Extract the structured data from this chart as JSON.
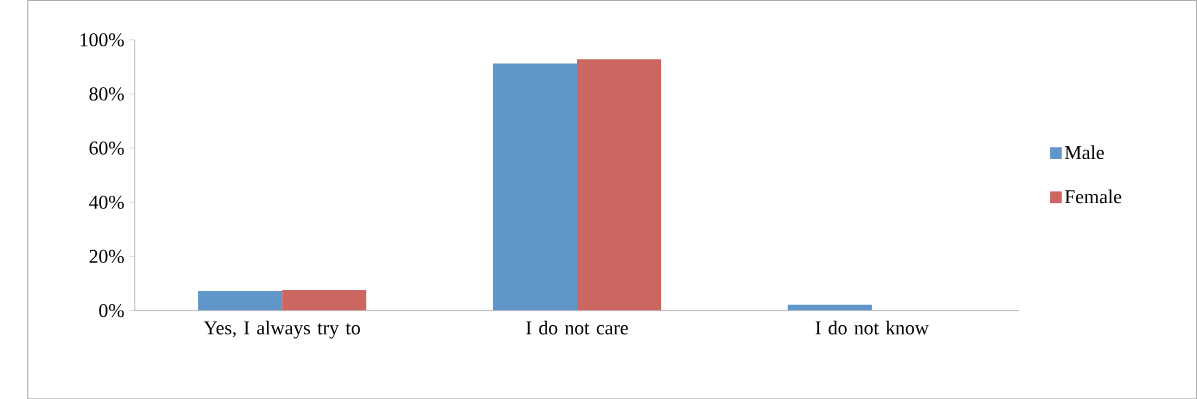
{
  "chart_data": {
    "type": "bar",
    "categories": [
      "Yes, I always try to",
      "I do not care",
      "I do not know"
    ],
    "series": [
      {
        "name": "Male",
        "color": "#6096c9",
        "values": [
          7.2,
          91.3,
          2.2
        ]
      },
      {
        "name": "Female",
        "color": "#cb6660",
        "values": [
          7.6,
          92.8,
          0
        ]
      }
    ],
    "ylim": [
      0,
      100
    ],
    "yticks": [
      {
        "value": 0,
        "label": "0%"
      },
      {
        "value": 20,
        "label": "20%"
      },
      {
        "value": 40,
        "label": "40%"
      },
      {
        "value": 60,
        "label": "60%"
      },
      {
        "value": 80,
        "label": "80%"
      },
      {
        "value": 100,
        "label": "100%"
      }
    ],
    "grid": false,
    "legend": "right"
  }
}
